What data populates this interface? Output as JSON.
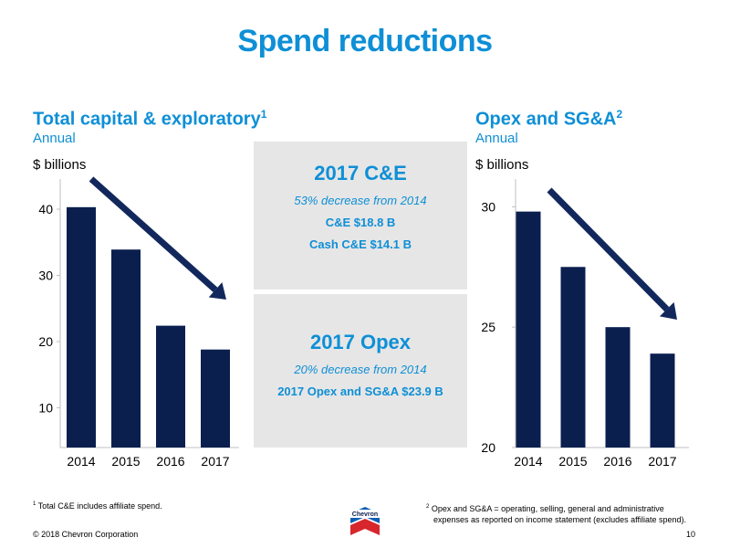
{
  "page_title": "Spend reductions",
  "colors": {
    "accent": "#0e8fd6",
    "bar": "#0b1f4f",
    "panel": "#e6e6e6",
    "arrow": "#12285c"
  },
  "chart_data": [
    {
      "type": "bar",
      "title": "Total capital & exploratory",
      "title_footnote": "1",
      "subtitle": "Annual",
      "ylabel": "$ billions",
      "categories": [
        "2014",
        "2015",
        "2016",
        "2017"
      ],
      "values": [
        40.3,
        33.9,
        22.4,
        18.8
      ],
      "ylim": [
        4,
        44
      ],
      "yticks": [
        10,
        20,
        30,
        40
      ],
      "grid": false,
      "trend_arrow": "decreasing"
    },
    {
      "type": "bar",
      "title": "Opex and SG&A",
      "title_footnote": "2",
      "subtitle": "Annual",
      "ylabel": "$ billions",
      "categories": [
        "2014",
        "2015",
        "2016",
        "2017"
      ],
      "values": [
        29.8,
        27.5,
        25.0,
        23.9
      ],
      "ylim": [
        20,
        31
      ],
      "yticks": [
        20,
        25,
        30
      ],
      "grid": false,
      "trend_arrow": "decreasing"
    }
  ],
  "panels": [
    {
      "title": "2017 C&E",
      "lines": [
        "53% decrease from 2014",
        "C&E $18.8 B",
        "Cash C&E $14.1 B"
      ]
    },
    {
      "title": "2017 Opex",
      "lines": [
        "20% decrease from 2014",
        "2017 Opex and SG&A $23.9 B"
      ]
    }
  ],
  "footnotes": {
    "note1_num": "1",
    "note1_text": "Total C&E includes affiliate spend.",
    "note2_num": "2",
    "note2_line1": "Opex and SG&A = operating, selling, general and administrative",
    "note2_line2": "expenses as reported on income statement (excludes affiliate spend)."
  },
  "logo_text": "Chevron",
  "copyright": "© 2018 Chevron Corporation",
  "page_number": "10"
}
